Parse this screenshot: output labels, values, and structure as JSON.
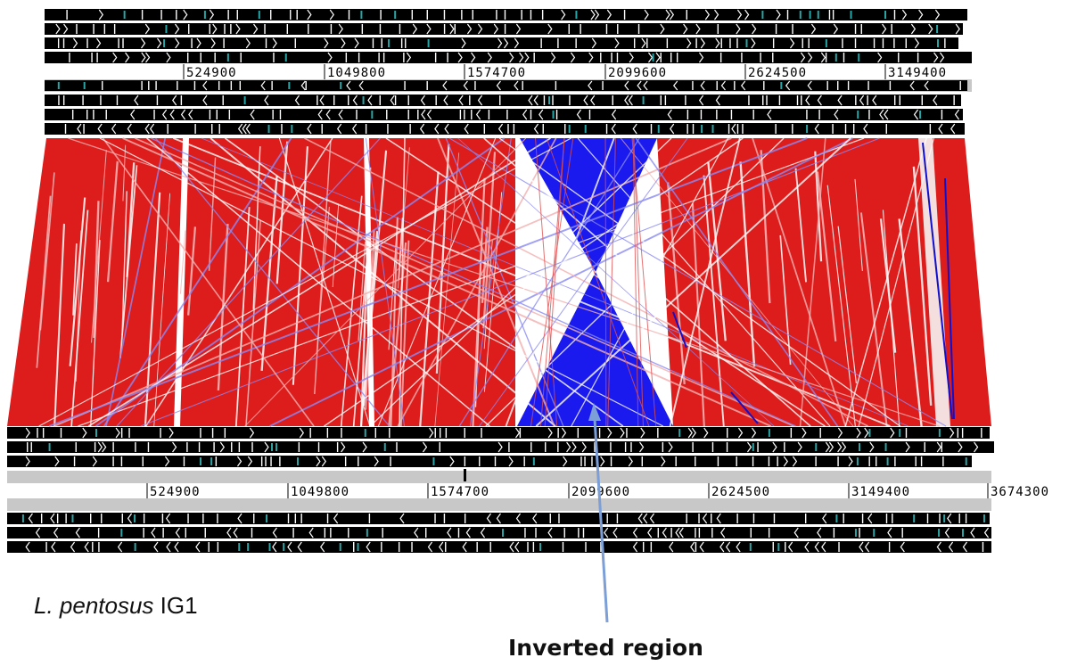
{
  "upper_genome": {
    "ticks": [
      "524900",
      "1049800",
      "1574700",
      "2099600",
      "2624500",
      "3149400"
    ]
  },
  "lower_genome": {
    "ticks": [
      "524900",
      "1049800",
      "1574700",
      "2099600",
      "2624500",
      "3149400",
      "3674300"
    ]
  },
  "organism": {
    "genus": "L. pentosus",
    "strain": "IG1"
  },
  "annotation": {
    "text": "Inverted region"
  },
  "colors": {
    "forward_match": "#dd1c1c",
    "inverted_match": "#1a1aee",
    "feature": "#000000",
    "feature_alt": "#2aa5a5",
    "ruler_bar": "#c8c8c8",
    "arrow": "#7b9fd6"
  }
}
